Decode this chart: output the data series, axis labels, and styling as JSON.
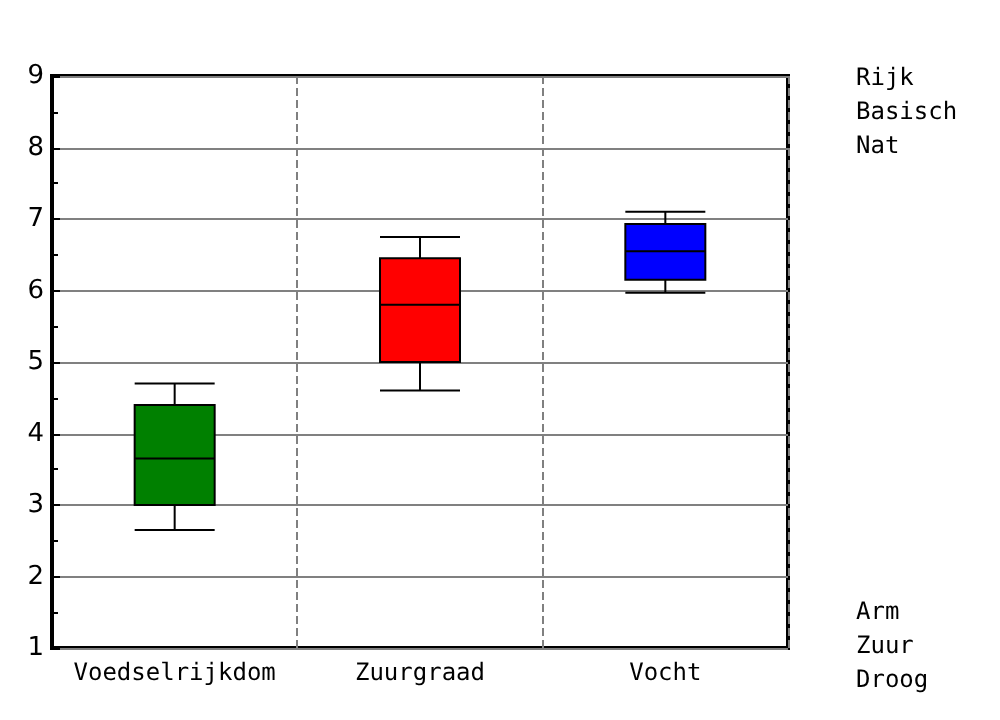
{
  "chart_data": {
    "type": "box",
    "categories": [
      "Voedselrijkdom",
      "Zuurgraad",
      "Vocht"
    ],
    "boxes": [
      {
        "low": 2.65,
        "q1": 3.0,
        "median": 3.65,
        "q3": 4.4,
        "high": 4.7
      },
      {
        "low": 4.6,
        "q1": 5.0,
        "median": 5.8,
        "q3": 6.45,
        "high": 6.75
      },
      {
        "low": 5.97,
        "q1": 6.15,
        "median": 6.55,
        "q3": 6.93,
        "high": 7.1
      }
    ],
    "colors": [
      "#008000",
      "#ff0000",
      "#0000ff"
    ],
    "ylim": [
      1,
      9
    ],
    "yticks": [
      1,
      2,
      3,
      4,
      5,
      6,
      7,
      8,
      9
    ],
    "grid": true,
    "annotations": [
      "Rijk\nBasisch\nNat",
      "Arm\nZuur\nDroog"
    ]
  }
}
